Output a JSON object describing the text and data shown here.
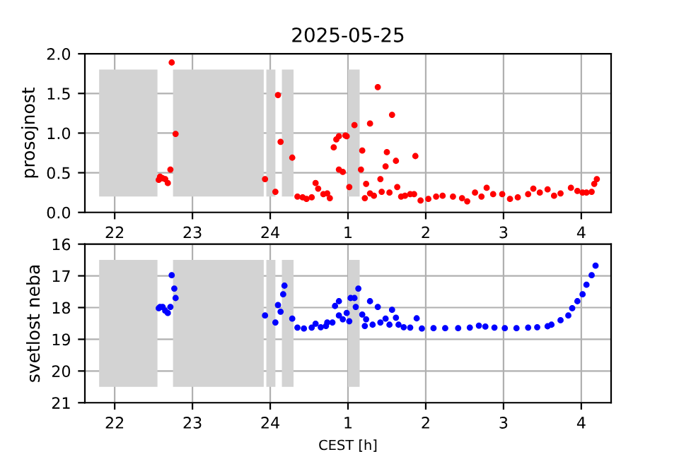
{
  "chart_data": [
    {
      "type": "scatter",
      "title": "2025-05-25",
      "ylabel": "prosojnost",
      "marker": "circle",
      "grid": true,
      "xlim": [
        "2025-05-24T21:37",
        "2025-05-25T04:23"
      ],
      "xticks": [
        {
          "value": "2025-05-24T22:00",
          "label": "22"
        },
        {
          "value": "2025-05-24T23:00",
          "label": "23"
        },
        {
          "value": "2025-05-25T00:00",
          "label": "24"
        },
        {
          "value": "2025-05-25T01:00",
          "label": "1"
        },
        {
          "value": "2025-05-25T02:00",
          "label": "2"
        },
        {
          "value": "2025-05-25T03:00",
          "label": "3"
        },
        {
          "value": "2025-05-25T04:00",
          "label": "4"
        }
      ],
      "ylim": [
        0,
        2
      ],
      "yticks": [
        {
          "value": 0,
          "label": "0.0"
        },
        {
          "value": 0.5,
          "label": "0.5"
        },
        {
          "value": 1,
          "label": "1.0"
        },
        {
          "value": 1.5,
          "label": "1.5"
        },
        {
          "value": 2,
          "label": "2.0"
        }
      ],
      "bands": [
        {
          "axis": "x",
          "from": "2025-05-24T21:48",
          "to": "2025-05-24T22:33",
          "color": "#d3d3d3"
        },
        {
          "axis": "x",
          "from": "2025-05-24T22:45",
          "to": "2025-05-24T23:55",
          "color": "#d3d3d3"
        },
        {
          "axis": "x",
          "from": "2025-05-24T23:57",
          "to": "2025-05-25T00:04",
          "color": "#d3d3d3"
        },
        {
          "axis": "x",
          "from": "2025-05-25T00:09",
          "to": "2025-05-25T00:18",
          "color": "#d3d3d3"
        },
        {
          "axis": "x",
          "from": "2025-05-25T01:00",
          "to": "2025-05-25T01:09",
          "color": "#d3d3d3"
        }
      ],
      "series": [
        {
          "color": "#ff0000",
          "x": [
            "2025-05-24T22:34",
            "2025-05-24T22:35",
            "2025-05-24T22:37",
            "2025-05-24T22:39",
            "2025-05-24T22:41",
            "2025-05-24T22:43",
            "2025-05-24T22:44",
            "2025-05-24T22:47",
            "2025-05-24T23:56",
            "2025-05-25T00:04",
            "2025-05-25T00:06",
            "2025-05-25T00:08",
            "2025-05-25T00:17",
            "2025-05-25T00:21",
            "2025-05-25T00:25",
            "2025-05-25T00:28",
            "2025-05-25T00:32",
            "2025-05-25T00:35",
            "2025-05-25T00:37",
            "2025-05-25T00:41",
            "2025-05-25T00:44",
            "2025-05-25T00:46",
            "2025-05-25T00:49",
            "2025-05-25T00:51",
            "2025-05-25T00:53",
            "2025-05-25T00:53",
            "2025-05-25T00:56",
            "2025-05-25T00:58",
            "2025-05-25T00:59",
            "2025-05-25T01:01",
            "2025-05-25T01:05",
            "2025-05-25T01:10",
            "2025-05-25T01:11",
            "2025-05-25T01:13",
            "2025-05-25T01:14",
            "2025-05-25T01:17",
            "2025-05-25T01:17",
            "2025-05-25T01:20",
            "2025-05-25T01:23",
            "2025-05-25T01:25",
            "2025-05-25T01:26",
            "2025-05-25T01:29",
            "2025-05-25T01:30",
            "2025-05-25T01:32",
            "2025-05-25T01:34",
            "2025-05-25T01:37",
            "2025-05-25T01:38",
            "2025-05-25T01:41",
            "2025-05-25T01:44",
            "2025-05-25T01:48",
            "2025-05-25T01:51",
            "2025-05-25T01:52",
            "2025-05-25T01:56",
            "2025-05-25T02:02",
            "2025-05-25T02:08",
            "2025-05-25T02:13",
            "2025-05-25T02:21",
            "2025-05-25T02:28",
            "2025-05-25T02:32",
            "2025-05-25T02:38",
            "2025-05-25T02:43",
            "2025-05-25T02:47",
            "2025-05-25T02:52",
            "2025-05-25T02:59",
            "2025-05-25T03:05",
            "2025-05-25T03:11",
            "2025-05-25T03:19",
            "2025-05-25T03:23",
            "2025-05-25T03:28",
            "2025-05-25T03:34",
            "2025-05-25T03:39",
            "2025-05-25T03:44",
            "2025-05-25T03:52",
            "2025-05-25T03:57",
            "2025-05-25T04:01",
            "2025-05-25T04:04",
            "2025-05-25T04:08",
            "2025-05-25T04:10",
            "2025-05-25T04:12"
          ],
          "values": [
            0.41,
            0.45,
            0.43,
            0.42,
            0.37,
            0.54,
            1.89,
            0.99,
            0.42,
            0.26,
            1.48,
            0.89,
            0.69,
            0.2,
            0.19,
            0.17,
            0.19,
            0.37,
            0.3,
            0.23,
            0.24,
            0.18,
            0.82,
            0.92,
            0.96,
            0.54,
            0.51,
            0.97,
            0.96,
            0.32,
            1.1,
            0.54,
            0.78,
            0.18,
            0.36,
            1.12,
            0.24,
            0.21,
            1.58,
            0.42,
            0.26,
            0.58,
            0.76,
            0.25,
            1.23,
            0.65,
            0.32,
            0.2,
            0.21,
            0.23,
            0.23,
            0.71,
            0.15,
            0.17,
            0.2,
            0.21,
            0.2,
            0.18,
            0.14,
            0.25,
            0.2,
            0.31,
            0.23,
            0.23,
            0.17,
            0.19,
            0.23,
            0.3,
            0.25,
            0.29,
            0.21,
            0.24,
            0.31,
            0.27,
            0.25,
            0.25,
            0.26,
            0.36,
            0.42
          ]
        }
      ]
    },
    {
      "type": "scatter",
      "ylabel": "svetlost neba",
      "xlabel": "CEST [h]",
      "marker": "circle",
      "grid": true,
      "xlim": [
        "2025-05-24T21:37",
        "2025-05-25T04:23"
      ],
      "xticks": [
        {
          "value": "2025-05-24T22:00",
          "label": "22"
        },
        {
          "value": "2025-05-24T23:00",
          "label": "23"
        },
        {
          "value": "2025-05-25T00:00",
          "label": "24"
        },
        {
          "value": "2025-05-25T01:00",
          "label": "1"
        },
        {
          "value": "2025-05-25T02:00",
          "label": "2"
        },
        {
          "value": "2025-05-25T03:00",
          "label": "3"
        },
        {
          "value": "2025-05-25T04:00",
          "label": "4"
        }
      ],
      "ylim": [
        21,
        16
      ],
      "yticks": [
        16,
        17,
        18,
        19,
        20,
        21
      ],
      "bands": [
        {
          "axis": "x",
          "from": "2025-05-24T21:48",
          "to": "2025-05-24T22:33",
          "color": "#d3d3d3"
        },
        {
          "axis": "x",
          "from": "2025-05-24T22:45",
          "to": "2025-05-24T23:55",
          "color": "#d3d3d3"
        },
        {
          "axis": "x",
          "from": "2025-05-24T23:57",
          "to": "2025-05-25T00:04",
          "color": "#d3d3d3"
        },
        {
          "axis": "x",
          "from": "2025-05-25T00:09",
          "to": "2025-05-25T00:18",
          "color": "#d3d3d3"
        },
        {
          "axis": "x",
          "from": "2025-05-25T01:00",
          "to": "2025-05-25T01:09",
          "color": "#d3d3d3"
        }
      ],
      "series": [
        {
          "color": "#0000ff",
          "x": [
            "2025-05-24T22:34",
            "2025-05-24T22:35",
            "2025-05-24T22:37",
            "2025-05-24T22:39",
            "2025-05-24T22:41",
            "2025-05-24T22:43",
            "2025-05-24T22:44",
            "2025-05-24T22:46",
            "2025-05-24T22:47",
            "2025-05-24T23:56",
            "2025-05-25T00:04",
            "2025-05-25T00:06",
            "2025-05-25T00:08",
            "2025-05-25T00:10",
            "2025-05-25T00:11",
            "2025-05-25T00:17",
            "2025-05-25T00:21",
            "2025-05-25T00:26",
            "2025-05-25T00:32",
            "2025-05-25T00:35",
            "2025-05-25T00:39",
            "2025-05-25T00:43",
            "2025-05-25T00:44",
            "2025-05-25T00:48",
            "2025-05-25T00:50",
            "2025-05-25T00:53",
            "2025-05-25T00:53",
            "2025-05-25T00:56",
            "2025-05-25T00:59",
            "2025-05-25T01:01",
            "2025-05-25T01:02",
            "2025-05-25T01:05",
            "2025-05-25T01:06",
            "2025-05-25T01:08",
            "2025-05-25T01:11",
            "2025-05-25T01:13",
            "2025-05-25T01:14",
            "2025-05-25T01:17",
            "2025-05-25T01:19",
            "2025-05-25T01:23",
            "2025-05-25T01:25",
            "2025-05-25T01:29",
            "2025-05-25T01:32",
            "2025-05-25T01:34",
            "2025-05-25T01:37",
            "2025-05-25T01:39",
            "2025-05-25T01:43",
            "2025-05-25T01:48",
            "2025-05-25T01:53",
            "2025-05-25T01:57",
            "2025-05-25T02:06",
            "2025-05-25T02:15",
            "2025-05-25T02:25",
            "2025-05-25T02:34",
            "2025-05-25T02:41",
            "2025-05-25T02:46",
            "2025-05-25T02:53",
            "2025-05-25T03:01",
            "2025-05-25T03:10",
            "2025-05-25T03:19",
            "2025-05-25T03:26",
            "2025-05-25T03:34",
            "2025-05-25T03:37",
            "2025-05-25T03:44",
            "2025-05-25T03:50",
            "2025-05-25T03:53",
            "2025-05-25T03:57",
            "2025-05-25T04:01",
            "2025-05-25T04:04",
            "2025-05-25T04:08",
            "2025-05-25T04:11"
          ],
          "values": [
            18.02,
            17.98,
            17.98,
            18.1,
            18.17,
            17.98,
            16.98,
            17.4,
            17.7,
            18.25,
            18.47,
            17.92,
            18.13,
            17.58,
            17.31,
            18.35,
            18.63,
            18.66,
            18.63,
            18.51,
            18.62,
            18.58,
            18.47,
            18.47,
            17.95,
            17.8,
            18.25,
            18.37,
            18.17,
            18.43,
            17.7,
            17.7,
            17.98,
            17.4,
            18.22,
            18.58,
            18.37,
            17.8,
            18.54,
            17.98,
            18.47,
            18.35,
            18.54,
            18.07,
            18.32,
            18.54,
            18.62,
            18.63,
            18.34,
            18.66,
            18.65,
            18.65,
            18.65,
            18.63,
            18.57,
            18.6,
            18.63,
            18.65,
            18.65,
            18.63,
            18.62,
            18.59,
            18.54,
            18.4,
            18.25,
            18.02,
            17.8,
            17.58,
            17.28,
            16.98,
            16.68
          ]
        }
      ]
    }
  ]
}
